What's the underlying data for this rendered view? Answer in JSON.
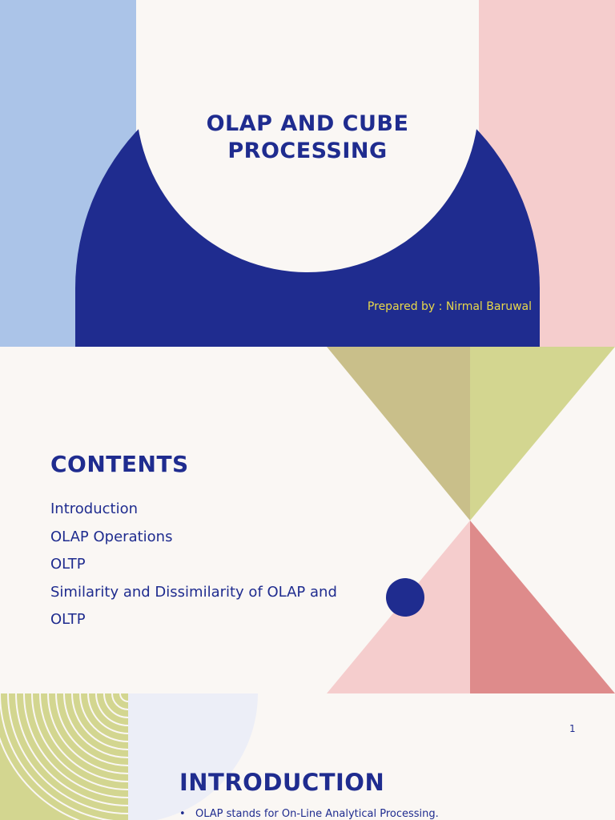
{
  "slides": {
    "title": {
      "title": "OLAP AND CUBE PROCESSING",
      "author": "Prepared by : Nirmal Baruwal"
    },
    "contents": {
      "heading": "CONTENTS",
      "items": [
        "Introduction",
        "OLAP Operations",
        "OLTP",
        "Similarity and Dissimilarity of OLAP and OLTP"
      ]
    },
    "introduction": {
      "page_number": "1",
      "heading": "INTRODUCTION",
      "bullets": [
        "OLAP stands for On-Line Analytical Processing."
      ]
    }
  },
  "colors": {
    "navy": "#1f2c8f",
    "light_blue": "#abc4e8",
    "pink": "#f5cdcd",
    "salmon": "#de8b8b",
    "olive": "#c9bf8a",
    "lime": "#d3d690",
    "gold": "#e8d84a",
    "lavender": "#eceef7",
    "background": "#faf7f4"
  }
}
